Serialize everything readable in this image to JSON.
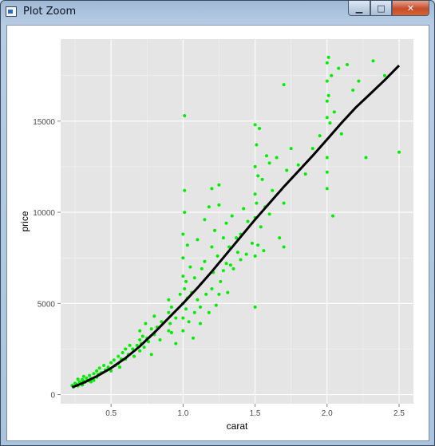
{
  "window": {
    "title": "Plot Zoom",
    "buttons": {
      "minimize": "▁",
      "maximize": "□",
      "close": "✕"
    }
  },
  "colors": {
    "panel_background": "#e5e5e5",
    "gridline": "#ffffff",
    "points": "#00ee00",
    "trend_line": "#000000"
  },
  "chart_data": {
    "type": "scatter",
    "title": "",
    "xlabel": "carat",
    "ylabel": "price",
    "xlim": [
      0.15,
      2.6
    ],
    "ylim": [
      -500,
      19500
    ],
    "x_ticks": [
      0.5,
      1.0,
      1.5,
      2.0,
      2.5
    ],
    "x_tick_labels": [
      "0.5",
      "1.0",
      "1.5",
      "2.0",
      "2.5"
    ],
    "y_ticks": [
      0,
      5000,
      10000,
      15000
    ],
    "y_tick_labels": [
      "0",
      "5000",
      "10000",
      "15000"
    ],
    "grid": true,
    "series": [
      {
        "type": "scatter",
        "color": "#00ee00",
        "points": [
          [
            0.23,
            500
          ],
          [
            0.24,
            420
          ],
          [
            0.25,
            620
          ],
          [
            0.26,
            560
          ],
          [
            0.27,
            480
          ],
          [
            0.28,
            700
          ],
          [
            0.29,
            650
          ],
          [
            0.3,
            530
          ],
          [
            0.3,
            820
          ],
          [
            0.31,
            740
          ],
          [
            0.31,
            1000
          ],
          [
            0.32,
            680
          ],
          [
            0.33,
            900
          ],
          [
            0.34,
            760
          ],
          [
            0.35,
            1050
          ],
          [
            0.36,
            880
          ],
          [
            0.38,
            1150
          ],
          [
            0.38,
            780
          ],
          [
            0.4,
            1300
          ],
          [
            0.4,
            950
          ],
          [
            0.41,
            1100
          ],
          [
            0.42,
            1450
          ],
          [
            0.43,
            1200
          ],
          [
            0.45,
            1600
          ],
          [
            0.46,
            1350
          ],
          [
            0.48,
            1500
          ],
          [
            0.5,
            1750
          ],
          [
            0.5,
            1300
          ],
          [
            0.52,
            1900
          ],
          [
            0.53,
            1600
          ],
          [
            0.55,
            2100
          ],
          [
            0.55,
            1700
          ],
          [
            0.57,
            1950
          ],
          [
            0.58,
            2300
          ],
          [
            0.6,
            2500
          ],
          [
            0.6,
            1950
          ],
          [
            0.62,
            2200
          ],
          [
            0.63,
            2700
          ],
          [
            0.65,
            2500
          ],
          [
            0.7,
            3000
          ],
          [
            0.7,
            2400
          ],
          [
            0.7,
            3500
          ],
          [
            0.71,
            2800
          ],
          [
            0.72,
            3200
          ],
          [
            0.73,
            2600
          ],
          [
            0.74,
            3900
          ],
          [
            0.75,
            3100
          ],
          [
            0.76,
            2900
          ],
          [
            0.78,
            3600
          ],
          [
            0.8,
            3300
          ],
          [
            0.8,
            4300
          ],
          [
            0.82,
            3700
          ],
          [
            0.85,
            4000
          ],
          [
            0.9,
            3500
          ],
          [
            0.9,
            4500
          ],
          [
            0.9,
            5200
          ],
          [
            0.91,
            3900
          ],
          [
            0.92,
            4800
          ],
          [
            0.95,
            4200
          ],
          [
            0.98,
            5500
          ],
          [
            1.0,
            5000
          ],
          [
            1.0,
            4200
          ],
          [
            1.0,
            6500
          ],
          [
            1.0,
            7500
          ],
          [
            1.0,
            8800
          ],
          [
            1.0,
            3500
          ],
          [
            1.01,
            5800
          ],
          [
            1.01,
            10000
          ],
          [
            1.01,
            11200
          ],
          [
            1.01,
            15300
          ],
          [
            1.02,
            4700
          ],
          [
            1.02,
            6200
          ],
          [
            1.03,
            5300
          ],
          [
            1.03,
            8200
          ],
          [
            1.04,
            4000
          ],
          [
            1.05,
            7000
          ],
          [
            1.06,
            5600
          ],
          [
            1.07,
            3100
          ],
          [
            1.08,
            6400
          ],
          [
            1.1,
            5200
          ],
          [
            1.1,
            8500
          ],
          [
            1.12,
            4800
          ],
          [
            1.13,
            6900
          ],
          [
            1.15,
            9600
          ],
          [
            1.15,
            7300
          ],
          [
            1.16,
            5500
          ],
          [
            1.18,
            10300
          ],
          [
            1.2,
            5800
          ],
          [
            1.2,
            8100
          ],
          [
            1.2,
            11300
          ],
          [
            1.21,
            6700
          ],
          [
            1.22,
            9000
          ],
          [
            1.23,
            4900
          ],
          [
            1.24,
            7600
          ],
          [
            1.25,
            10400
          ],
          [
            1.25,
            11500
          ],
          [
            1.26,
            6200
          ],
          [
            1.28,
            8600
          ],
          [
            1.3,
            7200
          ],
          [
            1.3,
            9400
          ],
          [
            1.31,
            5600
          ],
          [
            1.32,
            8100
          ],
          [
            1.34,
            9800
          ],
          [
            1.35,
            6900
          ],
          [
            1.37,
            8600
          ],
          [
            1.4,
            8800
          ],
          [
            1.4,
            7400
          ],
          [
            1.42,
            10200
          ],
          [
            1.45,
            9500
          ],
          [
            1.48,
            8300
          ],
          [
            1.5,
            7600
          ],
          [
            1.5,
            9700
          ],
          [
            1.5,
            11000
          ],
          [
            1.5,
            12500
          ],
          [
            1.5,
            14800
          ],
          [
            1.5,
            4800
          ],
          [
            1.51,
            10500
          ],
          [
            1.51,
            13700
          ],
          [
            1.52,
            8200
          ],
          [
            1.52,
            12000
          ],
          [
            1.53,
            14600
          ],
          [
            1.54,
            9200
          ],
          [
            1.55,
            11800
          ],
          [
            1.56,
            7900
          ],
          [
            1.57,
            10300
          ],
          [
            1.58,
            13100
          ],
          [
            1.6,
            9900
          ],
          [
            1.6,
            12700
          ],
          [
            1.62,
            11200
          ],
          [
            1.65,
            13000
          ],
          [
            1.67,
            8600
          ],
          [
            1.7,
            8100
          ],
          [
            1.7,
            10500
          ],
          [
            1.7,
            17000
          ],
          [
            1.72,
            12300
          ],
          [
            1.75,
            13500
          ],
          [
            1.8,
            12600
          ],
          [
            1.85,
            12100
          ],
          [
            1.9,
            13500
          ],
          [
            1.95,
            14200
          ],
          [
            2.0,
            13000
          ],
          [
            2.0,
            15200
          ],
          [
            2.0,
            16100
          ],
          [
            2.0,
            17200
          ],
          [
            2.0,
            18200
          ],
          [
            2.0,
            11300
          ],
          [
            2.0,
            12200
          ],
          [
            2.01,
            16400
          ],
          [
            2.01,
            18500
          ],
          [
            2.02,
            14900
          ],
          [
            2.03,
            17500
          ],
          [
            2.04,
            9800
          ],
          [
            2.05,
            15500
          ],
          [
            2.08,
            17900
          ],
          [
            2.1,
            14300
          ],
          [
            2.14,
            18100
          ],
          [
            2.18,
            16700
          ],
          [
            2.22,
            17200
          ],
          [
            2.27,
            13000
          ],
          [
            2.32,
            18300
          ],
          [
            2.4,
            17500
          ],
          [
            2.5,
            13300
          ],
          [
            0.92,
            3400
          ],
          [
            0.95,
            2800
          ],
          [
            1.08,
            4500
          ],
          [
            1.12,
            3900
          ],
          [
            1.18,
            4500
          ],
          [
            1.25,
            5500
          ],
          [
            1.28,
            6800
          ],
          [
            1.33,
            7100
          ],
          [
            1.38,
            7800
          ],
          [
            1.44,
            7700
          ],
          [
            0.78,
            2200
          ],
          [
            0.84,
            3000
          ],
          [
            0.66,
            2100
          ],
          [
            0.68,
            2700
          ],
          [
            0.56,
            1500
          ],
          [
            0.44,
            1200
          ],
          [
            0.36,
            700
          ],
          [
            0.27,
            850
          ]
        ]
      },
      {
        "type": "line",
        "color": "#000000",
        "points": [
          [
            0.23,
            400
          ],
          [
            0.3,
            620
          ],
          [
            0.4,
            1000
          ],
          [
            0.5,
            1450
          ],
          [
            0.6,
            2000
          ],
          [
            0.7,
            2650
          ],
          [
            0.8,
            3400
          ],
          [
            0.9,
            4200
          ],
          [
            1.0,
            5000
          ],
          [
            1.1,
            5850
          ],
          [
            1.2,
            6750
          ],
          [
            1.3,
            7700
          ],
          [
            1.4,
            8650
          ],
          [
            1.5,
            9600
          ],
          [
            1.6,
            10500
          ],
          [
            1.7,
            11400
          ],
          [
            1.8,
            12250
          ],
          [
            1.9,
            13100
          ],
          [
            2.0,
            14000
          ],
          [
            2.1,
            14900
          ],
          [
            2.2,
            15750
          ],
          [
            2.3,
            16500
          ],
          [
            2.4,
            17250
          ],
          [
            2.5,
            18050
          ]
        ]
      }
    ]
  }
}
